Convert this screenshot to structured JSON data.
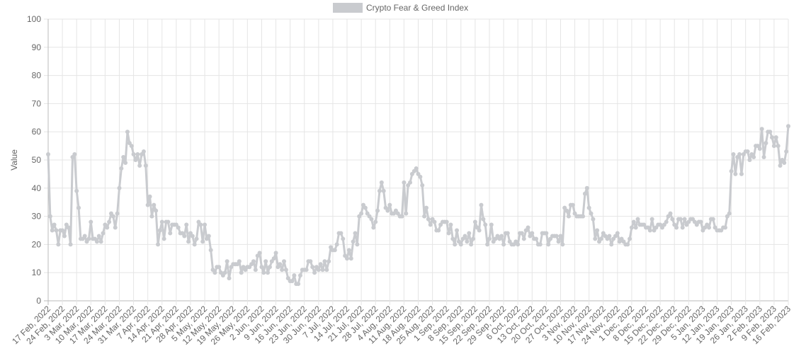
{
  "chart_data": {
    "type": "line",
    "series": [
      {
        "name": "Crypto Fear & Greed Index",
        "color": "#c9cbcf",
        "values": [
          52,
          30,
          25,
          27,
          25,
          20,
          25,
          25,
          23,
          27,
          26,
          20,
          51,
          52,
          39,
          33,
          22,
          22,
          23,
          21,
          22,
          28,
          22,
          22,
          21,
          23,
          21,
          24,
          27,
          26,
          28,
          31,
          30,
          26,
          31,
          40,
          47,
          51,
          49,
          60,
          56,
          55,
          52,
          50,
          52,
          48,
          52,
          53,
          48,
          34,
          37,
          30,
          34,
          32,
          20,
          25,
          28,
          22,
          28,
          28,
          24,
          27,
          27,
          27,
          26,
          24,
          24,
          23,
          27,
          21,
          24,
          23,
          20,
          22,
          28,
          27,
          21,
          27,
          22,
          23,
          18,
          11,
          10,
          12,
          12,
          10,
          9,
          10,
          14,
          8,
          12,
          13,
          13,
          13,
          14,
          10,
          12,
          11,
          12,
          12,
          13,
          14,
          11,
          16,
          17,
          12,
          10,
          14,
          10,
          12,
          14,
          15,
          17,
          12,
          13,
          11,
          14,
          11,
          8,
          7,
          7,
          9,
          6,
          6,
          9,
          11,
          11,
          11,
          14,
          14,
          12,
          10,
          12,
          11,
          13,
          11,
          14,
          11,
          14,
          19,
          18,
          18,
          20,
          24,
          24,
          22,
          16,
          15,
          18,
          15,
          21,
          24,
          20,
          30,
          31,
          34,
          33,
          31,
          30,
          29,
          26,
          28,
          32,
          39,
          42,
          39,
          33,
          32,
          34,
          31,
          31,
          32,
          31,
          30,
          30,
          42,
          31,
          41,
          42,
          45,
          46,
          47,
          45,
          44,
          41,
          30,
          33,
          29,
          27,
          29,
          28,
          25,
          25,
          27,
          28,
          28,
          28,
          24,
          27,
          22,
          20,
          25,
          21,
          20,
          22,
          23,
          21,
          24,
          20,
          22,
          28,
          26,
          25,
          34,
          29,
          27,
          20,
          22,
          27,
          21,
          22,
          23,
          22,
          23,
          20,
          24,
          24,
          21,
          20,
          20,
          21,
          20,
          24,
          24,
          22,
          25,
          26,
          23,
          24,
          22,
          22,
          20,
          20,
          24,
          24,
          24,
          20,
          22,
          23,
          23,
          23,
          21,
          23,
          20,
          33,
          32,
          30,
          34,
          34,
          31,
          30,
          30,
          30,
          30,
          38,
          40,
          33,
          31,
          29,
          22,
          25,
          21,
          22,
          24,
          23,
          22,
          23,
          20,
          22,
          23,
          24,
          21,
          22,
          21,
          20,
          20,
          22,
          26,
          28,
          26,
          29,
          27,
          27,
          27,
          26,
          26,
          25,
          29,
          25,
          26,
          27,
          27,
          26,
          27,
          28,
          30,
          31,
          29,
          27,
          26,
          29,
          29,
          26,
          29,
          27,
          28,
          29,
          29,
          28,
          27,
          28,
          28,
          25,
          26,
          27,
          26,
          29,
          29,
          26,
          25,
          25,
          25,
          26,
          26,
          30,
          31,
          46,
          52,
          45,
          51,
          52,
          45,
          52,
          53,
          53,
          50,
          52,
          51,
          55,
          55,
          54,
          61,
          51,
          56,
          60,
          60,
          58,
          55,
          58,
          55,
          48,
          50,
          49,
          53,
          62
        ]
      }
    ],
    "categories": [
      "17 Feb, 2022",
      null,
      null,
      null,
      null,
      null,
      null,
      "24 Feb, 2022",
      null,
      null,
      null,
      null,
      null,
      null,
      "3 Mar, 2022",
      null,
      null,
      null,
      null,
      null,
      null,
      "10 Mar, 2022",
      null,
      null,
      null,
      null,
      null,
      null,
      "17 Mar, 2022",
      null,
      null,
      null,
      null,
      null,
      null,
      "24 Mar, 2022",
      null,
      null,
      null,
      null,
      null,
      null,
      "31 Mar, 2022",
      null,
      null,
      null,
      null,
      null,
      null,
      "7 Apr, 2022",
      null,
      null,
      null,
      null,
      null,
      null,
      "14 Apr, 2022",
      null,
      null,
      null,
      null,
      null,
      null,
      "21 Apr, 2022",
      null,
      null,
      null,
      null,
      null,
      null,
      "28 Apr, 2022",
      null,
      null,
      null,
      null,
      null,
      null,
      "5 May, 2022",
      null,
      null,
      null,
      null,
      null,
      null,
      "12 May, 2022",
      null,
      null,
      null,
      null,
      null,
      null,
      "19 May, 2022",
      null,
      null,
      null,
      null,
      null,
      null,
      "26 May, 2022",
      null,
      null,
      null,
      null,
      null,
      null,
      "2 Jun, 2022",
      null,
      null,
      null,
      null,
      null,
      null,
      "9 Jun, 2022",
      null,
      null,
      null,
      null,
      null,
      null,
      "16 Jun, 2022",
      null,
      null,
      null,
      null,
      null,
      null,
      "23 Jun, 2022",
      null,
      null,
      null,
      null,
      null,
      null,
      "30 Jun, 2022",
      null,
      null,
      null,
      null,
      null,
      null,
      "7 Jul, 2022",
      null,
      null,
      null,
      null,
      null,
      null,
      "14 Jul, 2022",
      null,
      null,
      null,
      null,
      null,
      null,
      "21 Jul, 2022",
      null,
      null,
      null,
      null,
      null,
      null,
      "28 Jul, 2022",
      null,
      null,
      null,
      null,
      null,
      null,
      "4 Aug, 2022",
      null,
      null,
      null,
      null,
      null,
      null,
      "11 Aug, 2022",
      null,
      null,
      null,
      null,
      null,
      null,
      "18 Aug, 2022",
      null,
      null,
      null,
      null,
      null,
      null,
      "25 Aug, 2022",
      null,
      null,
      null,
      null,
      null,
      null,
      "1 Sep, 2022",
      null,
      null,
      null,
      null,
      null,
      null,
      "8 Sep, 2022",
      null,
      null,
      null,
      null,
      null,
      null,
      "15 Sep, 2022",
      null,
      null,
      null,
      null,
      null,
      null,
      "22 Sep, 2022",
      null,
      null,
      null,
      null,
      null,
      null,
      "29 Sep, 2022",
      null,
      null,
      null,
      null,
      null,
      null,
      "6 Oct, 2022",
      null,
      null,
      null,
      null,
      null,
      null,
      "13 Oct, 2022",
      null,
      null,
      null,
      null,
      null,
      null,
      "20 Oct, 2022",
      null,
      null,
      null,
      null,
      null,
      null,
      "27 Oct, 2022",
      null,
      null,
      null,
      null,
      null,
      null,
      "3 Nov, 2022",
      null,
      null,
      null,
      null,
      null,
      null,
      "10 Nov, 2022",
      null,
      null,
      null,
      null,
      null,
      null,
      "17 Nov, 2022",
      null,
      null,
      null,
      null,
      null,
      null,
      "24 Nov, 2022",
      null,
      null,
      null,
      null,
      null,
      null,
      "1 Dec, 2022",
      null,
      null,
      null,
      null,
      null,
      null,
      "8 Dec, 2022",
      null,
      null,
      null,
      null,
      null,
      null,
      "15 Dec, 2022",
      null,
      null,
      null,
      null,
      null,
      null,
      "22 Dec, 2022",
      null,
      null,
      null,
      null,
      null,
      null,
      "29 Dec, 2022",
      null,
      null,
      null,
      null,
      null,
      null,
      "5 Jan, 2023",
      null,
      null,
      null,
      null,
      null,
      null,
      "12 Jan, 2023",
      null,
      null,
      null,
      null,
      null,
      null,
      "19 Jan, 2023",
      null,
      null,
      null,
      null,
      null,
      null,
      "26 Jan, 2023",
      null,
      null,
      null,
      null,
      null,
      null,
      "2 Feb, 2023",
      null,
      null,
      null,
      null,
      null,
      null,
      "9 Feb, 2023",
      null,
      null,
      null,
      null,
      null,
      null,
      "16 Feb, 2023"
    ],
    "y_label": "Value",
    "ylim": [
      0,
      100
    ],
    "yticks": [
      0,
      10,
      20,
      30,
      40,
      50,
      60,
      70,
      80,
      90,
      100
    ],
    "grid": true,
    "legend": "top"
  }
}
